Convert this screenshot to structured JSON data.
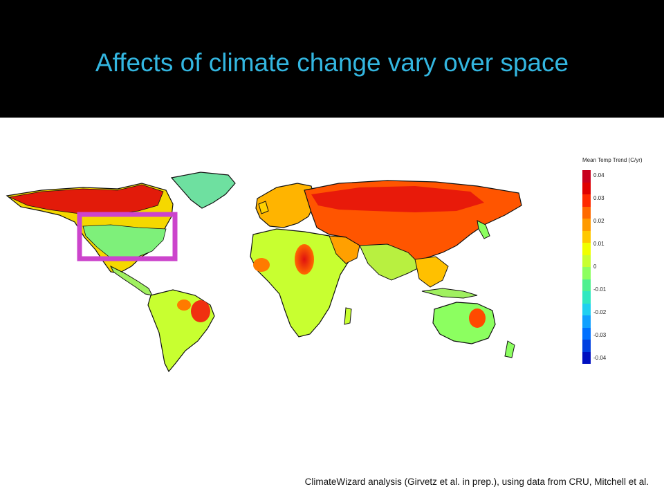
{
  "slide": {
    "title": "Affects of climate change vary over space",
    "caption": "ClimateWizard analysis (Girvetz et al. in prep.),  using data from CRU, Mitchell et al.",
    "highlight_color": "#cc44cc"
  },
  "legend": {
    "title": "Mean Temp Trend (C/yr)",
    "colors": [
      "#c8001e",
      "#e00000",
      "#ff2a00",
      "#ff6a00",
      "#ff9a00",
      "#ffc800",
      "#f0ff00",
      "#c8ff30",
      "#8cff60",
      "#50f090",
      "#30e8c0",
      "#20d0f0",
      "#10a0ff",
      "#0070ff",
      "#0040e0",
      "#0010c0"
    ],
    "ticks": [
      "0.04",
      "0.03",
      "0.02",
      "0.01",
      "0",
      "-0.01",
      "-0.02",
      "-0.03",
      "-0.04"
    ]
  }
}
